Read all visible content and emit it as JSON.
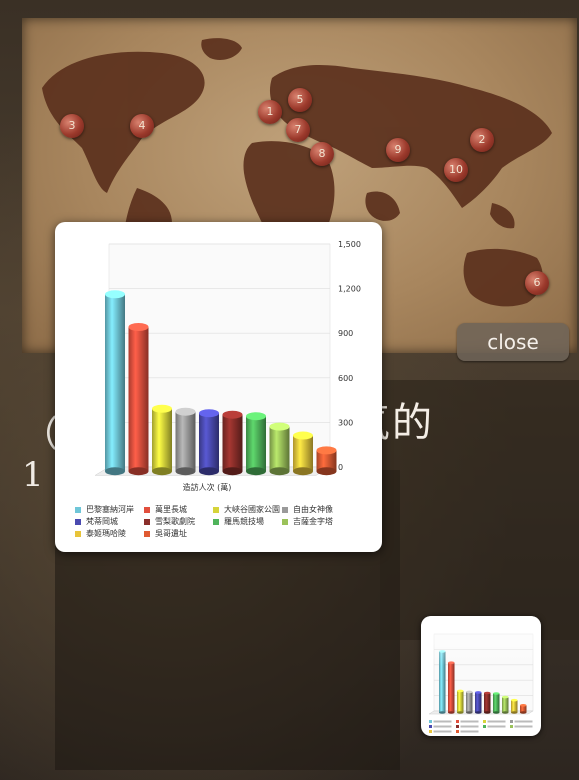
{
  "map": {
    "markers": [
      {
        "label": "3"
      },
      {
        "label": "4"
      },
      {
        "label": "1"
      },
      {
        "label": "5"
      },
      {
        "label": "7"
      },
      {
        "label": "8"
      },
      {
        "label": "9"
      },
      {
        "label": "2"
      },
      {
        "label": "10"
      },
      {
        "label": "6"
      }
    ]
  },
  "close_label": "close",
  "background_text": {
    "right": "氣的",
    "left_top": "（",
    "left_bottom": "1"
  },
  "chart_data": {
    "type": "bar",
    "xlabel": "造訪人次 (萬)",
    "ylim": [
      0,
      1500
    ],
    "yticks": [
      "0",
      "300",
      "600",
      "900",
      "1,200",
      "1,500"
    ],
    "categories": [
      "巴黎塞納河岸",
      "萬里長城",
      "大峽谷國家公園",
      "自由女神像",
      "梵蒂岡城",
      "雪梨歌劇院",
      "羅馬競技場",
      "吉薩金字塔",
      "泰姬瑪哈陵",
      "吳哥遺址"
    ],
    "values": [
      1190,
      970,
      420,
      400,
      390,
      380,
      370,
      300,
      240,
      140
    ],
    "colors": [
      "#6fc6d8",
      "#e24f3d",
      "#d6d43a",
      "#9a9a9a",
      "#4a4ab0",
      "#8a2e2a",
      "#4fb45b",
      "#9bc25a",
      "#e8c43a",
      "#e05a32"
    ]
  }
}
